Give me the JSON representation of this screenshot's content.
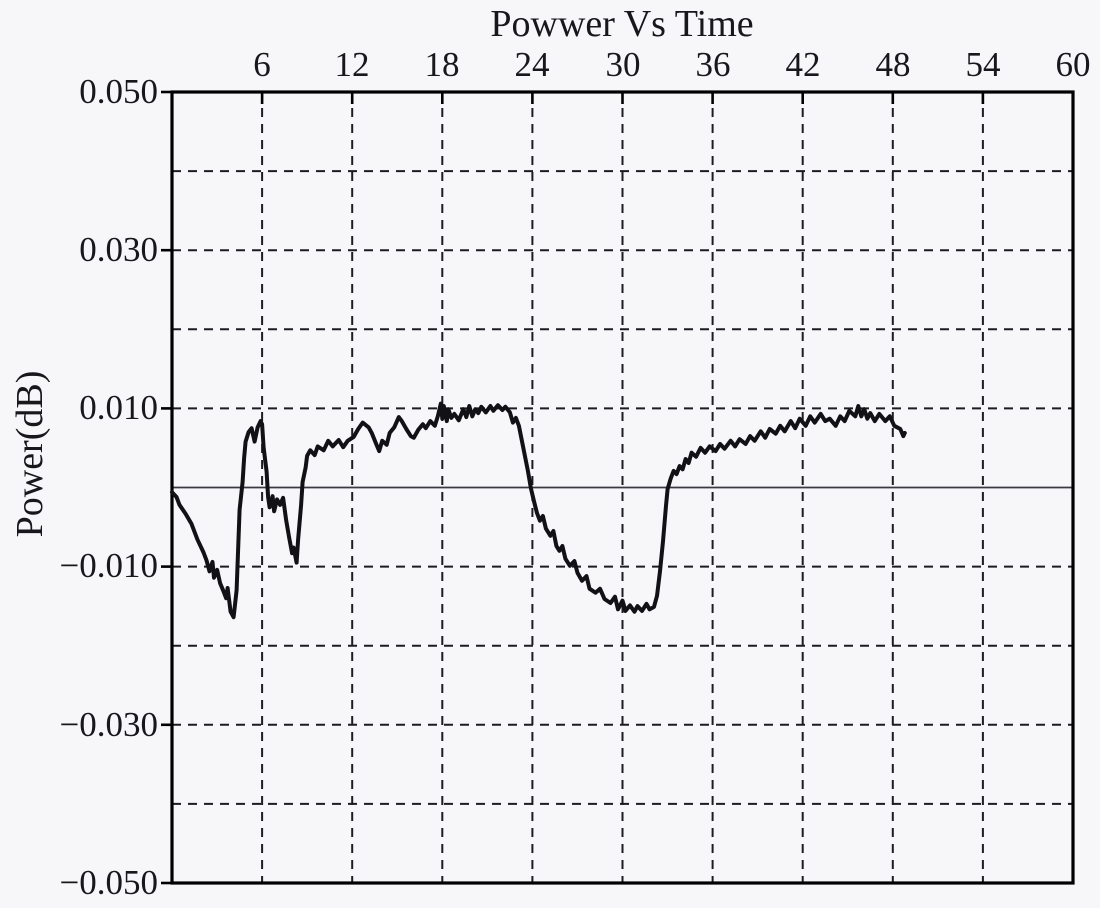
{
  "chart_data": {
    "type": "line",
    "title": "Powwer Vs Time",
    "xlabel": "",
    "ylabel": "Power(dB)",
    "x_axis": {
      "min": 0,
      "max": 60,
      "ticks": [
        6,
        12,
        18,
        24,
        30,
        36,
        42,
        48,
        54,
        60
      ],
      "tick_labels": [
        "6",
        "12",
        "18",
        "24",
        "30",
        "36",
        "42",
        "48",
        "54",
        "60"
      ],
      "labels_position": "top"
    },
    "y_axis": {
      "min": -0.05,
      "max": 0.05,
      "grid_step": 0.01,
      "labeled_ticks": [
        0.05,
        0.03,
        0.01,
        -0.01,
        -0.03,
        -0.05
      ],
      "tick_labels": [
        "0.050",
        "0.030",
        "0.010",
        "−0.010",
        "−0.030",
        "−0.050"
      ]
    },
    "grid": {
      "style": "dashed",
      "color": "#1c1c22"
    },
    "zero_line": true,
    "series": [
      {
        "name": "power",
        "color": "#121216",
        "points": [
          [
            0,
            -0.0006
          ],
          [
            0.3,
            -0.0012
          ],
          [
            0.5,
            -0.0022
          ],
          [
            0.9,
            -0.0033
          ],
          [
            1.3,
            -0.0046
          ],
          [
            1.7,
            -0.0066
          ],
          [
            2.1,
            -0.0082
          ],
          [
            2.3,
            -0.0092
          ],
          [
            2.5,
            -0.0106
          ],
          [
            2.7,
            -0.0094
          ],
          [
            2.8,
            -0.0114
          ],
          [
            3.0,
            -0.0104
          ],
          [
            3.2,
            -0.0121
          ],
          [
            3.4,
            -0.013
          ],
          [
            3.6,
            -0.014
          ],
          [
            3.7,
            -0.0127
          ],
          [
            3.9,
            -0.0157
          ],
          [
            4.1,
            -0.0164
          ],
          [
            4.3,
            -0.013
          ],
          [
            4.4,
            -0.0079
          ],
          [
            4.5,
            -0.0028
          ],
          [
            4.7,
            0.0007
          ],
          [
            4.8,
            0.0037
          ],
          [
            4.9,
            0.0058
          ],
          [
            5.1,
            0.007
          ],
          [
            5.3,
            0.0075
          ],
          [
            5.5,
            0.0058
          ],
          [
            5.7,
            0.0076
          ],
          [
            5.9,
            0.0084
          ],
          [
            6.0,
            0.008
          ],
          [
            6.1,
            0.0051
          ],
          [
            6.3,
            0.002
          ],
          [
            6.4,
            -0.0012
          ],
          [
            6.5,
            -0.0025
          ],
          [
            6.7,
            -0.0011
          ],
          [
            6.8,
            -0.003
          ],
          [
            7.0,
            -0.0015
          ],
          [
            7.2,
            -0.0022
          ],
          [
            7.4,
            -0.0013
          ],
          [
            7.6,
            -0.0041
          ],
          [
            7.8,
            -0.0063
          ],
          [
            8.0,
            -0.0083
          ],
          [
            8.1,
            -0.0076
          ],
          [
            8.3,
            -0.0095
          ],
          [
            8.4,
            -0.0066
          ],
          [
            8.6,
            -0.0022
          ],
          [
            8.7,
            0.0007
          ],
          [
            8.9,
            0.0025
          ],
          [
            9.0,
            0.004
          ],
          [
            9.2,
            0.0047
          ],
          [
            9.5,
            0.0041
          ],
          [
            9.7,
            0.0052
          ],
          [
            10.1,
            0.0047
          ],
          [
            10.4,
            0.0059
          ],
          [
            10.7,
            0.0052
          ],
          [
            11.1,
            0.006
          ],
          [
            11.4,
            0.0051
          ],
          [
            11.7,
            0.0059
          ],
          [
            12.1,
            0.0064
          ],
          [
            12.4,
            0.0074
          ],
          [
            12.7,
            0.0082
          ],
          [
            13.1,
            0.0076
          ],
          [
            13.3,
            0.0069
          ],
          [
            13.6,
            0.0055
          ],
          [
            13.8,
            0.0046
          ],
          [
            14.0,
            0.0059
          ],
          [
            14.3,
            0.0054
          ],
          [
            14.5,
            0.0069
          ],
          [
            14.8,
            0.0076
          ],
          [
            15.1,
            0.0089
          ],
          [
            15.3,
            0.0084
          ],
          [
            15.6,
            0.0074
          ],
          [
            15.9,
            0.0065
          ],
          [
            16.1,
            0.0063
          ],
          [
            16.4,
            0.0073
          ],
          [
            16.7,
            0.008
          ],
          [
            16.9,
            0.0075
          ],
          [
            17.2,
            0.0084
          ],
          [
            17.5,
            0.0078
          ],
          [
            17.7,
            0.009
          ],
          [
            17.9,
            0.0106
          ],
          [
            18.0,
            0.0087
          ],
          [
            18.1,
            0.0103
          ],
          [
            18.3,
            0.0084
          ],
          [
            18.4,
            0.0099
          ],
          [
            18.6,
            0.0088
          ],
          [
            18.8,
            0.0093
          ],
          [
            19.1,
            0.0085
          ],
          [
            19.4,
            0.0099
          ],
          [
            19.6,
            0.0089
          ],
          [
            19.8,
            0.0103
          ],
          [
            20.0,
            0.009
          ],
          [
            20.2,
            0.0099
          ],
          [
            20.4,
            0.0094
          ],
          [
            20.6,
            0.0102
          ],
          [
            20.9,
            0.0095
          ],
          [
            21.2,
            0.0103
          ],
          [
            21.4,
            0.0097
          ],
          [
            21.7,
            0.0104
          ],
          [
            22.0,
            0.0098
          ],
          [
            22.2,
            0.0102
          ],
          [
            22.5,
            0.0095
          ],
          [
            22.7,
            0.0082
          ],
          [
            22.9,
            0.0088
          ],
          [
            23.1,
            0.0078
          ],
          [
            23.3,
            0.0059
          ],
          [
            23.5,
            0.004
          ],
          [
            23.7,
            0.0021
          ],
          [
            23.9,
            -0.0001
          ],
          [
            24.1,
            -0.0017
          ],
          [
            24.3,
            -0.0032
          ],
          [
            24.5,
            -0.0042
          ],
          [
            24.7,
            -0.0036
          ],
          [
            24.9,
            -0.0052
          ],
          [
            25.2,
            -0.0061
          ],
          [
            25.4,
            -0.0055
          ],
          [
            25.6,
            -0.0074
          ],
          [
            25.8,
            -0.008
          ],
          [
            26.0,
            -0.0074
          ],
          [
            26.2,
            -0.009
          ],
          [
            26.5,
            -0.0099
          ],
          [
            26.8,
            -0.0093
          ],
          [
            27.0,
            -0.0108
          ],
          [
            27.3,
            -0.0118
          ],
          [
            27.6,
            -0.0112
          ],
          [
            27.8,
            -0.0128
          ],
          [
            28.2,
            -0.0133
          ],
          [
            28.5,
            -0.0128
          ],
          [
            28.8,
            -0.0141
          ],
          [
            29.2,
            -0.0146
          ],
          [
            29.5,
            -0.0138
          ],
          [
            29.7,
            -0.0154
          ],
          [
            30.0,
            -0.0143
          ],
          [
            30.2,
            -0.0156
          ],
          [
            30.5,
            -0.0149
          ],
          [
            30.8,
            -0.0157
          ],
          [
            31.0,
            -0.015
          ],
          [
            31.3,
            -0.0156
          ],
          [
            31.6,
            -0.0147
          ],
          [
            31.8,
            -0.0154
          ],
          [
            32.1,
            -0.0151
          ],
          [
            32.3,
            -0.0137
          ],
          [
            32.5,
            -0.0106
          ],
          [
            32.7,
            -0.0068
          ],
          [
            32.9,
            -0.0023
          ],
          [
            33.0,
            -0.0002
          ],
          [
            33.2,
            0.0011
          ],
          [
            33.4,
            0.0021
          ],
          [
            33.6,
            0.0017
          ],
          [
            33.8,
            0.0027
          ],
          [
            34.0,
            0.0023
          ],
          [
            34.2,
            0.0036
          ],
          [
            34.4,
            0.0031
          ],
          [
            34.6,
            0.0044
          ],
          [
            34.9,
            0.0039
          ],
          [
            35.2,
            0.005
          ],
          [
            35.5,
            0.0044
          ],
          [
            35.8,
            0.0052
          ],
          [
            36.2,
            0.0046
          ],
          [
            36.5,
            0.0055
          ],
          [
            36.8,
            0.0049
          ],
          [
            37.2,
            0.0059
          ],
          [
            37.5,
            0.0052
          ],
          [
            37.8,
            0.0061
          ],
          [
            38.2,
            0.0055
          ],
          [
            38.5,
            0.0065
          ],
          [
            38.8,
            0.0059
          ],
          [
            39.2,
            0.0071
          ],
          [
            39.5,
            0.0063
          ],
          [
            39.8,
            0.0074
          ],
          [
            40.2,
            0.0068
          ],
          [
            40.5,
            0.0078
          ],
          [
            40.8,
            0.0071
          ],
          [
            41.2,
            0.0084
          ],
          [
            41.5,
            0.0075
          ],
          [
            41.8,
            0.0087
          ],
          [
            42.2,
            0.0078
          ],
          [
            42.5,
            0.009
          ],
          [
            42.8,
            0.0082
          ],
          [
            43.2,
            0.0093
          ],
          [
            43.5,
            0.0084
          ],
          [
            43.8,
            0.0087
          ],
          [
            44.2,
            0.0078
          ],
          [
            44.5,
            0.009
          ],
          [
            44.8,
            0.0084
          ],
          [
            45.1,
            0.0097
          ],
          [
            45.5,
            0.009
          ],
          [
            45.7,
            0.0103
          ],
          [
            45.9,
            0.009
          ],
          [
            46.1,
            0.0099
          ],
          [
            46.3,
            0.0087
          ],
          [
            46.5,
            0.0094
          ],
          [
            46.8,
            0.0084
          ],
          [
            47.1,
            0.0093
          ],
          [
            47.5,
            0.0084
          ],
          [
            47.8,
            0.009
          ],
          [
            48.1,
            0.0078
          ],
          [
            48.5,
            0.0074
          ],
          [
            48.7,
            0.0065
          ],
          [
            48.8,
            0.0069
          ]
        ]
      }
    ]
  }
}
